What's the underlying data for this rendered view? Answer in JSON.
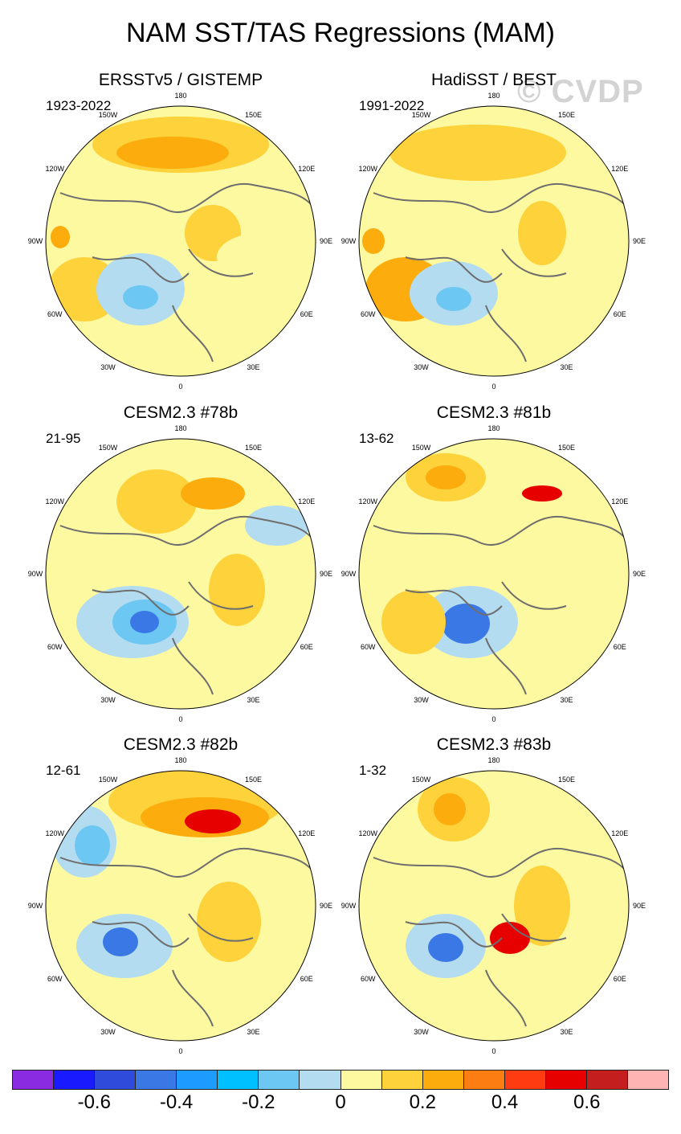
{
  "figure": {
    "title": "NAM SST/TAS Regressions (MAM)",
    "watermark": "© CVDP"
  },
  "longitude_labels": {
    "top": "180",
    "upper_left": "150W",
    "upper_right": "150E",
    "left_upper": "120W",
    "right_upper": "120E",
    "left": "90W",
    "right": "90E",
    "left_lower": "60W",
    "right_lower": "60E",
    "lower_left": "30W",
    "lower_right": "30E",
    "bottom": "0"
  },
  "panels": [
    {
      "title": "ERSSTv5 / GISTEMP",
      "period": "1923-2022"
    },
    {
      "title": "HadiSST / BEST",
      "period": "1991-2022"
    },
    {
      "title": "CESM2.3 #78b",
      "period": "21-95"
    },
    {
      "title": "CESM2.3 #81b",
      "period": "13-62"
    },
    {
      "title": "CESM2.3 #82b",
      "period": "12-61"
    },
    {
      "title": "CESM2.3 #83b",
      "period": "1-32"
    }
  ],
  "colorbar": {
    "colors": [
      "#8a2be2",
      "#1a1aff",
      "#2e4bdb",
      "#3a78e6",
      "#1e9bff",
      "#00c0ff",
      "#6cc7f2",
      "#b4dcf0",
      "#fdf9a0",
      "#fdd23a",
      "#fcac0c",
      "#fc7e12",
      "#ff3b12",
      "#e60000",
      "#c41e1e",
      "#ffb4b4"
    ],
    "labels": [
      "-0.6",
      "-0.4",
      "-0.2",
      "0",
      "0.2",
      "0.4",
      "0.6"
    ]
  },
  "palette": {
    "land_outline": "#6e6e6e",
    "neutral": "#fdf9a0",
    "weak_positive": "#fdd23a",
    "positive": "#fcac0c",
    "weak_negative": "#b4dcf0",
    "negative": "#6cc7f2",
    "strong_negative": "#3a78e6",
    "strong_positive": "#e60000"
  }
}
